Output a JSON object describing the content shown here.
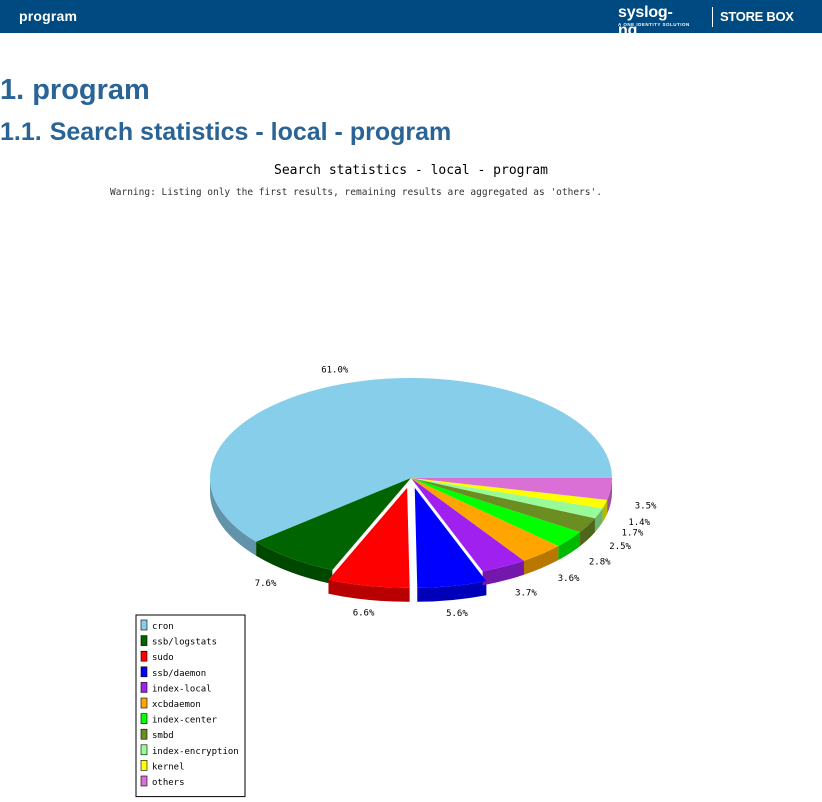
{
  "header": {
    "title": "program",
    "brand": {
      "logo": "syslog-ng",
      "tagline": "A ONE IDENTITY SOLUTION",
      "product": "STORE BOX"
    }
  },
  "main": {
    "section": {
      "number": "1.",
      "title": "program"
    },
    "subsection": {
      "number": "1.1.",
      "title": "Search statistics - local - program"
    }
  },
  "chart_data": {
    "type": "pie",
    "title": "Search statistics - local - program",
    "subtitle": "Warning: Listing only the first  results, remaining results are aggregated as 'others'.",
    "legend_position": "bottom-left",
    "slices": [
      {
        "label": "cron",
        "value": 61.0,
        "value_label": "61.0%",
        "color": "#87ceeb"
      },
      {
        "label": "ssb/logstats",
        "value": 7.6,
        "value_label": "7.6%",
        "color": "#006400"
      },
      {
        "label": "sudo",
        "value": 6.6,
        "value_label": "6.6%",
        "color": "#ff0000",
        "exploded": true
      },
      {
        "label": "ssb/daemon",
        "value": 5.6,
        "value_label": "5.6%",
        "color": "#0000ff",
        "exploded": true
      },
      {
        "label": "index-local",
        "value": 3.7,
        "value_label": "3.7%",
        "color": "#a020f0"
      },
      {
        "label": "xcbdaemon",
        "value": 3.6,
        "value_label": "3.6%",
        "color": "#ffa500"
      },
      {
        "label": "index-center",
        "value": 2.8,
        "value_label": "2.8%",
        "color": "#00ff00"
      },
      {
        "label": "smbd",
        "value": 2.5,
        "value_label": "2.5%",
        "color": "#6b8e23"
      },
      {
        "label": "index-encryption",
        "value": 1.7,
        "value_label": "1.7%",
        "color": "#98fb98"
      },
      {
        "label": "kernel",
        "value": 1.4,
        "value_label": "1.4%",
        "color": "#ffff00"
      },
      {
        "label": "others",
        "value": 3.5,
        "value_label": "3.5%",
        "color": "#da70d6"
      }
    ]
  }
}
